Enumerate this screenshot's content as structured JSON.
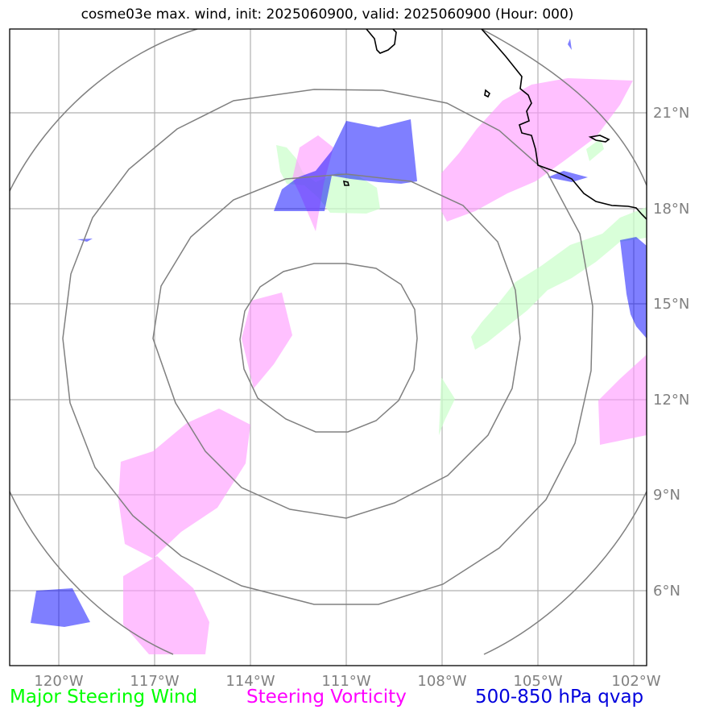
{
  "title": "cosme03e max. wind, init: 2025060900, valid: 2025060900 (Hour: 000)",
  "axes": {
    "longitudes": [
      {
        "lon": -120,
        "label": "120°W"
      },
      {
        "lon": -117,
        "label": "117°W"
      },
      {
        "lon": -114,
        "label": "114°W"
      },
      {
        "lon": -111,
        "label": "111°W"
      },
      {
        "lon": -108,
        "label": "108°W"
      },
      {
        "lon": -105,
        "label": "105°W"
      },
      {
        "lon": -102,
        "label": "102°W"
      }
    ],
    "latitudes": [
      {
        "lat": 21,
        "label": "21°N"
      },
      {
        "lat": 18,
        "label": "18°N"
      },
      {
        "lat": 15,
        "label": "15°N"
      },
      {
        "lat": 12,
        "label": "12°N"
      },
      {
        "lat": 9,
        "label": "9°N"
      },
      {
        "lat": 6,
        "label": "6°N"
      }
    ]
  },
  "legend": [
    {
      "key": "steering_wind",
      "label": "Major Steering Wind",
      "color": "#00ff00"
    },
    {
      "key": "steering_vorticity",
      "label": "Steering Vorticity",
      "color": "#ff00ff"
    },
    {
      "key": "qvap",
      "label": "500-850 hPa qvap",
      "color": "#0000dd"
    }
  ],
  "colors": {
    "steering_wind_fill": "#ccffcc",
    "steering_vorticity_fill": "#ff99ff",
    "qvap_fill": "#0000ff",
    "range_rings": "#808080",
    "graticule": "#b0b0b0",
    "coastline": "#000000"
  }
}
